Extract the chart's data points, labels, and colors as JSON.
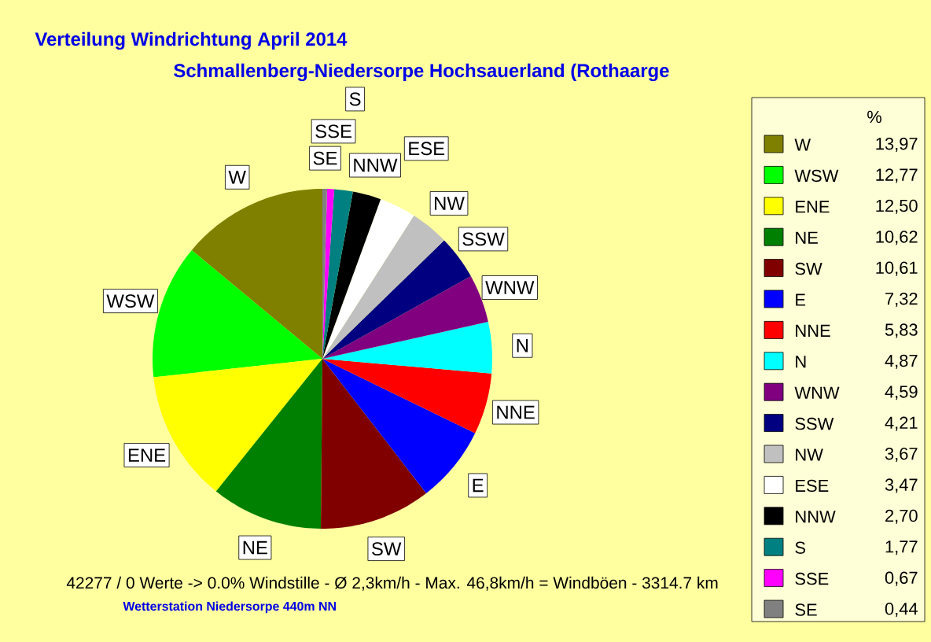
{
  "chart_data": {
    "type": "pie",
    "title": "Verteilung Windrichtung   April 2014",
    "subtitle": "Schmallenberg-Niedersorpe Hochsauerland (Rothaarge",
    "categories": [
      "W",
      "WSW",
      "ENE",
      "NE",
      "SW",
      "E",
      "NNE",
      "N",
      "WNW",
      "SSW",
      "NW",
      "ESE",
      "NNW",
      "S",
      "SSE",
      "SE"
    ],
    "values": [
      13.97,
      12.77,
      12.5,
      10.62,
      10.61,
      7.32,
      5.83,
      4.87,
      4.59,
      4.21,
      3.67,
      3.47,
      2.7,
      1.77,
      0.67,
      0.44
    ],
    "colors": [
      "#808000",
      "#00ff00",
      "#ffff00",
      "#008000",
      "#800000",
      "#0000ff",
      "#ff0000",
      "#00ffff",
      "#800080",
      "#000080",
      "#c0c0c0",
      "#ffffff",
      "#000000",
      "#008080",
      "#ff00ff",
      "#808080"
    ],
    "value_labels": [
      "13,97",
      "12,77",
      "12,50",
      "10,62",
      "10,61",
      "7,32",
      "5,83",
      "4,87",
      "4,59",
      "4,21",
      "3,67",
      "3,47",
      "2,70",
      "1,77",
      "0,67",
      "0,44"
    ],
    "legend": "right",
    "legend_title": "%",
    "annotations": [
      "42277 / 0 Werte  -> 0.0% Windstille   -   Ø 2,3km/h  -  Max. 46,8km/h = Windböen   -   3314.7 km",
      "Wetterstation Niedersorpe 440m NN"
    ]
  }
}
